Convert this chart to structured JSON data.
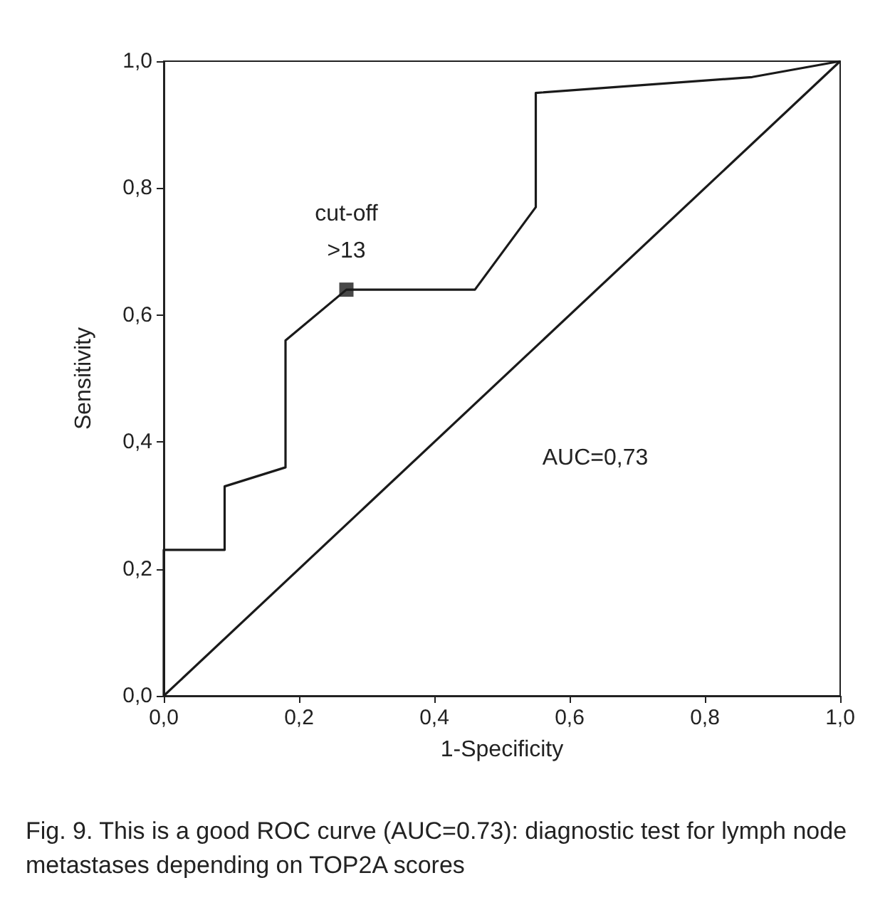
{
  "chart_data": {
    "type": "line",
    "xlabel": "1-Specificity",
    "ylabel": "Sensitivity",
    "series": [
      {
        "color": "#1a1a1a",
        "x": [
          0,
          0,
          0.09,
          0.09,
          0.18,
          0.18,
          0.27,
          0.46,
          0.55,
          0.55,
          0.87,
          1
        ],
        "values": [
          0,
          0.23,
          0.23,
          0.33,
          0.36,
          0.56,
          0.64,
          0.64,
          0.77,
          0.95,
          0.975,
          1
        ],
        "marker": "none"
      },
      {
        "color": "#1a1a1a",
        "x": [
          0,
          1
        ],
        "values": [
          0,
          1
        ],
        "marker": "none"
      },
      {
        "type": "scatter",
        "color": "#1a1a1a",
        "x": [
          0.27
        ],
        "values": [
          0.64
        ],
        "marker": "square"
      }
    ],
    "xlim": [
      0,
      1
    ],
    "ylim": [
      0,
      1
    ],
    "xticks": [
      {
        "value": 0,
        "label": "0,0"
      },
      {
        "value": 0.2,
        "label": "0,2"
      },
      {
        "value": 0.4,
        "label": "0,4"
      },
      {
        "value": 0.6,
        "label": "0,6"
      },
      {
        "value": 0.8,
        "label": "0,8"
      },
      {
        "value": 1,
        "label": "1,0"
      }
    ],
    "yticks": [
      {
        "value": 0,
        "label": "0,0"
      },
      {
        "value": 0.2,
        "label": "0,2"
      },
      {
        "value": 0.4,
        "label": "0,4"
      },
      {
        "value": 0.6,
        "label": "0,6"
      },
      {
        "value": 0.8,
        "label": "0,8"
      },
      {
        "value": 1,
        "label": "1,0"
      }
    ],
    "grid": false,
    "line_style": "solid",
    "annotations": [
      "AUC=0,73",
      {
        "text": "cut-off\n>13",
        "x": 0.27,
        "y": 0.64
      },
      "Fig. 9. This is a good ROC curve (AUC=0.73): diagnostic test for lymph node metastases depending on TOP2A scores"
    ]
  }
}
